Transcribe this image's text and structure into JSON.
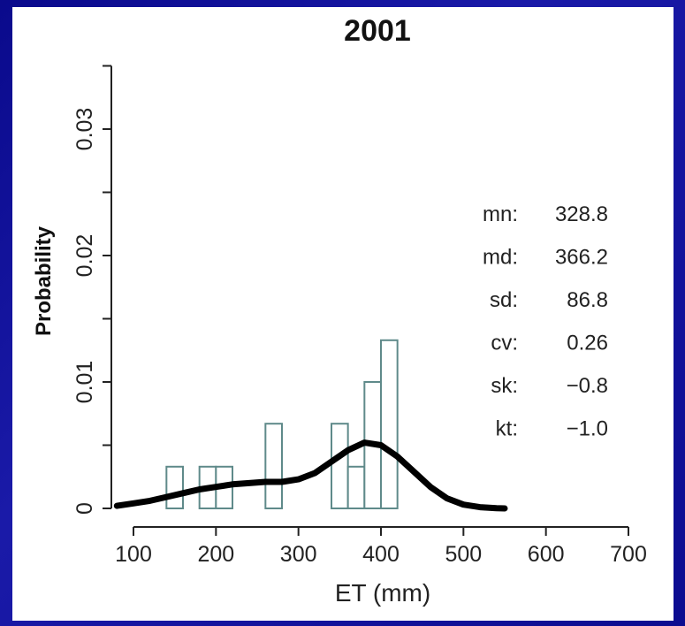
{
  "chart_data": {
    "type": "histogram",
    "title": "2001",
    "xlabel": "ET (mm)",
    "ylabel": "Probability",
    "xlim": [
      80,
      700
    ],
    "ylim": [
      0,
      0.035
    ],
    "x_ticks": [
      100,
      200,
      300,
      400,
      500,
      600,
      700
    ],
    "x_tick_labels": [
      "100",
      "200",
      "300",
      "400",
      "500",
      "600",
      "700"
    ],
    "y_ticks": [
      0,
      0.01,
      0.02,
      0.03
    ],
    "y_tick_labels": [
      "0",
      "0.01",
      "0.02",
      "0.03"
    ],
    "y_minor_ticks": [
      0.005,
      0.015,
      0.025,
      0.035
    ],
    "bar_color": "#5f8a8a",
    "density_color": "#000000",
    "bins": [
      {
        "x0": 140,
        "x1": 160,
        "value": 0.0033
      },
      {
        "x0": 160,
        "x1": 180,
        "value": 0
      },
      {
        "x0": 180,
        "x1": 200,
        "value": 0.0033
      },
      {
        "x0": 200,
        "x1": 220,
        "value": 0.0033
      },
      {
        "x0": 220,
        "x1": 240,
        "value": 0
      },
      {
        "x0": 240,
        "x1": 260,
        "value": 0
      },
      {
        "x0": 260,
        "x1": 280,
        "value": 0.0067
      },
      {
        "x0": 280,
        "x1": 300,
        "value": 0
      },
      {
        "x0": 300,
        "x1": 320,
        "value": 0
      },
      {
        "x0": 320,
        "x1": 340,
        "value": 0
      },
      {
        "x0": 340,
        "x1": 360,
        "value": 0.0067
      },
      {
        "x0": 360,
        "x1": 380,
        "value": 0.0033
      },
      {
        "x0": 380,
        "x1": 400,
        "value": 0.01
      },
      {
        "x0": 400,
        "x1": 420,
        "value": 0.0133
      }
    ],
    "density": {
      "x": [
        80,
        100,
        120,
        140,
        160,
        180,
        200,
        220,
        240,
        260,
        280,
        300,
        320,
        340,
        360,
        380,
        400,
        420,
        440,
        460,
        480,
        500,
        520,
        540,
        550
      ],
      "y": [
        0.0002,
        0.0004,
        0.0006,
        0.0009,
        0.0012,
        0.0015,
        0.0017,
        0.0019,
        0.002,
        0.0021,
        0.0021,
        0.0023,
        0.0028,
        0.0037,
        0.0046,
        0.0052,
        0.005,
        0.0041,
        0.0029,
        0.0017,
        0.0008,
        0.0003,
        0.0001,
        2e-05,
        0.0
      ]
    },
    "stats": [
      {
        "label": "mn:",
        "value": "328.8"
      },
      {
        "label": "md:",
        "value": "366.2"
      },
      {
        "label": "sd:",
        "value": "86.8"
      },
      {
        "label": "cv:",
        "value": "0.26"
      },
      {
        "label": "sk:",
        "value": "−0.8"
      },
      {
        "label": "kt:",
        "value": "−1.0"
      }
    ]
  }
}
